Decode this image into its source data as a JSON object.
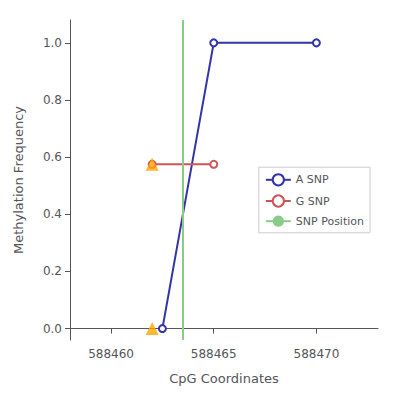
{
  "chart_data": {
    "type": "line",
    "xlabel": "CpG Coordinates",
    "ylabel": "Methylation Frequency",
    "series": [
      {
        "name": "A SNP",
        "type": "line",
        "color": "#3333AA",
        "marker": "circle",
        "x": [
          588462.5,
          588465,
          588470
        ],
        "values": [
          0.0,
          1.0,
          1.0
        ]
      },
      {
        "name": "G SNP",
        "type": "line",
        "color": "#CC5555",
        "marker": "circle",
        "x": [
          588462,
          588465
        ],
        "values": [
          0.575,
          0.575
        ]
      },
      {
        "name": "SNP Position",
        "type": "vline",
        "color": "#88CC88",
        "x": [
          588463.5
        ]
      },
      {
        "type": "scatter",
        "color": "#FFA500",
        "marker": "triangle",
        "x": [
          588462,
          588462
        ],
        "values": [
          0.575,
          0.0
        ]
      }
    ],
    "xlim": [
      588458.0,
      588473.0
    ],
    "ylim": [
      -0.04,
      1.08
    ],
    "xticks": [
      588460,
      588465,
      588470
    ],
    "yticks": [
      {
        "value": 0.0,
        "label": "0.0"
      },
      0.2,
      0.4,
      0.6,
      0.8,
      {
        "value": 1.0,
        "label": "1.0"
      }
    ],
    "grid": false,
    "legend": "center right"
  }
}
